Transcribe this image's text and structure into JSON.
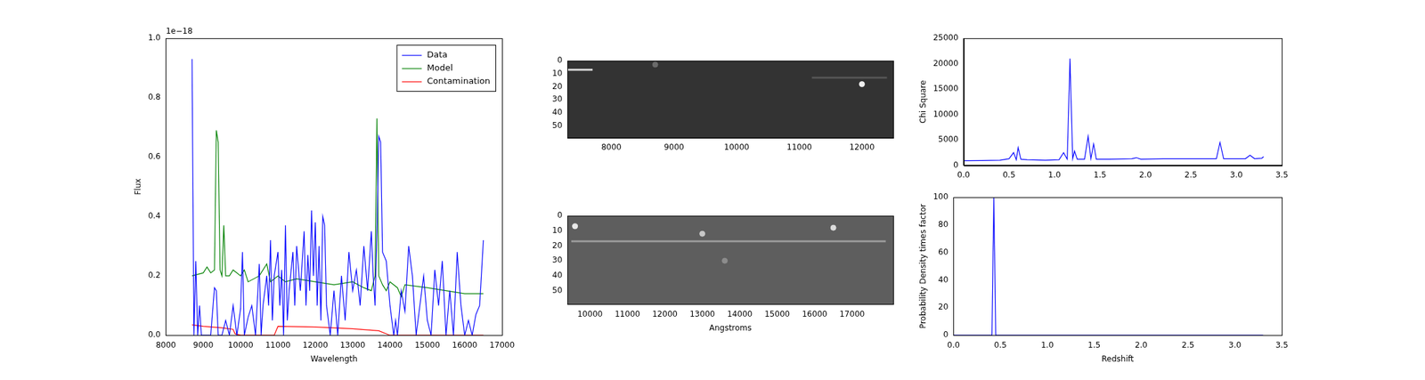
{
  "chart_data": [
    {
      "type": "line",
      "x_label": "Wavelength",
      "y_label": "Flux",
      "y_offset_text": "1e−18",
      "xlim": [
        8000,
        17000
      ],
      "xticks": [
        8000,
        9000,
        10000,
        11000,
        12000,
        13000,
        14000,
        15000,
        16000,
        17000
      ],
      "ylim": [
        0,
        1.0
      ],
      "yticks": [
        {
          "value": 0,
          "label": "0.0"
        },
        {
          "value": 0.2,
          "label": "0.2"
        },
        {
          "value": 0.4,
          "label": "0.4"
        },
        {
          "value": 0.6,
          "label": "0.6"
        },
        {
          "value": 0.8,
          "label": "0.8"
        },
        {
          "value": 1.0,
          "label": "1.0"
        }
      ],
      "legend": "upper right",
      "grid": false,
      "series": [
        {
          "name": "Data",
          "color": "#0000ff",
          "x": [
            8700,
            8750,
            8800,
            8850,
            8900,
            8950,
            9000,
            9100,
            9200,
            9300,
            9350,
            9400,
            9500,
            9600,
            9700,
            9800,
            9900,
            10000,
            10050,
            10100,
            10200,
            10300,
            10400,
            10500,
            10550,
            10600,
            10700,
            10750,
            10800,
            10850,
            10900,
            11000,
            11050,
            11100,
            11150,
            11200,
            11250,
            11300,
            11400,
            11450,
            11500,
            11600,
            11700,
            11750,
            11800,
            11850,
            11900,
            11950,
            12000,
            12050,
            12100,
            12150,
            12200,
            12250,
            12300,
            12400,
            12500,
            12600,
            12700,
            12800,
            12900,
            13000,
            13100,
            13200,
            13300,
            13400,
            13500,
            13550,
            13600,
            13650,
            13700,
            13750,
            13800,
            13900,
            14000,
            14100,
            14150,
            14200,
            14300,
            14400,
            14500,
            14600,
            14700,
            14800,
            14900,
            15000,
            15100,
            15200,
            15300,
            15400,
            15500,
            15600,
            15700,
            15800,
            15900,
            16000,
            16100,
            16200,
            16300,
            16400,
            16500
          ],
          "values": [
            0.93,
            0.0,
            0.25,
            0.0,
            0.1,
            0.0,
            0.0,
            0.0,
            0.0,
            0.16,
            0.15,
            0.0,
            0.0,
            0.05,
            0.0,
            0.1,
            0.0,
            0.09,
            0.28,
            0.0,
            0.06,
            0.1,
            0.0,
            0.24,
            0.0,
            0.1,
            0.2,
            0.1,
            0.32,
            0.05,
            0.2,
            0.28,
            0.1,
            0.22,
            0.0,
            0.37,
            0.05,
            0.15,
            0.28,
            0.1,
            0.3,
            0.15,
            0.35,
            0.1,
            0.27,
            0.15,
            0.42,
            0.2,
            0.38,
            0.1,
            0.3,
            0.05,
            0.4,
            0.37,
            0.1,
            0.0,
            0.15,
            0.0,
            0.2,
            0.05,
            0.28,
            0.15,
            0.22,
            0.1,
            0.3,
            0.15,
            0.35,
            0.2,
            0.1,
            0.35,
            0.67,
            0.65,
            0.28,
            0.25,
            0.1,
            0.0,
            0.05,
            0.0,
            0.15,
            0.08,
            0.3,
            0.2,
            0.0,
            0.1,
            0.2,
            0.05,
            0.0,
            0.22,
            0.1,
            0.25,
            0.0,
            0.15,
            0.0,
            0.28,
            0.1,
            0.0,
            0.05,
            0.0,
            0.07,
            0.1,
            0.32
          ]
        },
        {
          "name": "Model",
          "color": "#008000",
          "x": [
            8700,
            9000,
            9100,
            9200,
            9300,
            9350,
            9400,
            9450,
            9500,
            9550,
            9600,
            9700,
            9800,
            10000,
            10100,
            10200,
            10500,
            10700,
            10800,
            11000,
            11200,
            11500,
            12000,
            12500,
            13000,
            13300,
            13500,
            13600,
            13650,
            13700,
            13800,
            13900,
            14000,
            14200,
            14300,
            14400,
            15000,
            15500,
            16000,
            16500
          ],
          "values": [
            0.2,
            0.21,
            0.23,
            0.21,
            0.22,
            0.69,
            0.65,
            0.22,
            0.2,
            0.37,
            0.2,
            0.2,
            0.22,
            0.2,
            0.22,
            0.18,
            0.2,
            0.24,
            0.18,
            0.2,
            0.18,
            0.19,
            0.18,
            0.17,
            0.18,
            0.16,
            0.15,
            0.2,
            0.73,
            0.2,
            0.17,
            0.15,
            0.18,
            0.16,
            0.13,
            0.17,
            0.16,
            0.15,
            0.14,
            0.14
          ]
        },
        {
          "name": "Contamination",
          "color": "#ff0000",
          "x": [
            8700,
            9000,
            9500,
            9800,
            9850,
            10000,
            10900,
            11000,
            12000,
            13000,
            13700,
            14000,
            16500
          ],
          "values": [
            0.035,
            0.03,
            0.025,
            0.02,
            0.005,
            0.0,
            0.0,
            0.03,
            0.028,
            0.022,
            0.015,
            0.0,
            0.0
          ]
        }
      ]
    },
    {
      "type": "image",
      "xlim": [
        7300,
        12500
      ],
      "xticks": [
        8000,
        9000,
        10000,
        11000,
        12000
      ],
      "ylim": [
        59,
        0
      ],
      "yticks": [
        0,
        10,
        20,
        30,
        40,
        50
      ],
      "color": "#333333",
      "streaks": [
        {
          "x": [
            7300,
            7700
          ],
          "y": 7,
          "color": "#d8d8d8"
        },
        {
          "x": [
            11200,
            12400
          ],
          "y": 13,
          "color": "#555555"
        }
      ],
      "blobs": [
        {
          "x": 8700,
          "y": 3,
          "color": "#6a6a6a"
        },
        {
          "x": 12000,
          "y": 18,
          "color": "#f0f0f0"
        }
      ]
    },
    {
      "type": "image",
      "x_label": "Angstroms",
      "xlim": [
        9400,
        18100
      ],
      "xticks": [
        10000,
        11000,
        12000,
        13000,
        14000,
        15000,
        16000,
        17000
      ],
      "ylim": [
        59,
        0
      ],
      "yticks": [
        0,
        10,
        20,
        30,
        40,
        50
      ],
      "color": "#5e5e5e",
      "streaks": [
        {
          "x": [
            9500,
            17900
          ],
          "y": 17,
          "color": "#9a9a9a"
        }
      ],
      "blobs": [
        {
          "x": 9600,
          "y": 7,
          "color": "#e8e8e8"
        },
        {
          "x": 13000,
          "y": 12,
          "color": "#c8c8c8"
        },
        {
          "x": 16500,
          "y": 8,
          "color": "#dcdcdc"
        },
        {
          "x": 13600,
          "y": 30,
          "color": "#8c8c8c"
        }
      ]
    },
    {
      "type": "line",
      "y_label": "Chi Square",
      "xlim": [
        0,
        3.5
      ],
      "xticks": [
        {
          "value": 0,
          "label": "0.0"
        },
        {
          "value": 0.5,
          "label": "0.5"
        },
        {
          "value": 1.0,
          "label": "1.0"
        },
        {
          "value": 1.5,
          "label": "1.5"
        },
        {
          "value": 2.0,
          "label": "2.0"
        },
        {
          "value": 2.5,
          "label": "2.5"
        },
        {
          "value": 3.0,
          "label": "3.0"
        },
        {
          "value": 3.5,
          "label": "3.5"
        }
      ],
      "ylim": [
        0,
        25000
      ],
      "yticks": [
        0,
        5000,
        10000,
        15000,
        20000,
        25000
      ],
      "grid": false,
      "series": [
        {
          "name": "Chi Square",
          "color": "#0000ff",
          "x": [
            0.0,
            0.2,
            0.4,
            0.5,
            0.55,
            0.58,
            0.6,
            0.63,
            0.7,
            0.9,
            1.05,
            1.1,
            1.14,
            1.17,
            1.2,
            1.22,
            1.25,
            1.33,
            1.37,
            1.4,
            1.43,
            1.46,
            1.6,
            1.85,
            1.9,
            1.95,
            2.2,
            2.5,
            2.78,
            2.82,
            2.86,
            3.1,
            3.15,
            3.2,
            3.28,
            3.3
          ],
          "values": [
            900,
            950,
            1000,
            1300,
            2500,
            1100,
            3500,
            1200,
            1100,
            1000,
            1100,
            2500,
            1200,
            21000,
            1300,
            2800,
            1200,
            1200,
            5700,
            1300,
            4200,
            1200,
            1200,
            1300,
            1500,
            1200,
            1300,
            1300,
            1300,
            4500,
            1300,
            1300,
            2000,
            1300,
            1400,
            1700
          ]
        }
      ]
    },
    {
      "type": "line",
      "x_label": "Redshift",
      "y_label": "Probability Density times factor",
      "xlim": [
        0,
        3.5
      ],
      "xticks": [
        {
          "value": 0,
          "label": "0.0"
        },
        {
          "value": 0.5,
          "label": "0.5"
        },
        {
          "value": 1.0,
          "label": "1.0"
        },
        {
          "value": 1.5,
          "label": "1.5"
        },
        {
          "value": 2.0,
          "label": "2.0"
        },
        {
          "value": 2.5,
          "label": "2.5"
        },
        {
          "value": 3.0,
          "label": "3.0"
        },
        {
          "value": 3.5,
          "label": "3.5"
        }
      ],
      "ylim": [
        0,
        100
      ],
      "yticks": [
        0,
        20,
        40,
        60,
        80,
        100
      ],
      "grid": false,
      "series": [
        {
          "name": "Probability Density times factor",
          "color": "#0000ff",
          "x": [
            0.0,
            0.41,
            0.43,
            0.45,
            3.3
          ],
          "values": [
            0,
            0,
            100,
            0,
            0
          ]
        }
      ]
    }
  ]
}
